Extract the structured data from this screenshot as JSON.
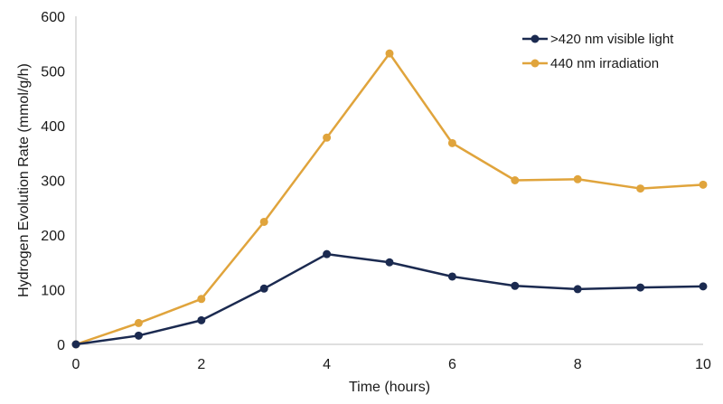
{
  "chart_data": {
    "type": "line",
    "title": "",
    "xlabel": "Time (hours)",
    "ylabel": "Hydrogen Evolution Rate (mmol/g/h)",
    "xlim": [
      0,
      10
    ],
    "ylim": [
      0,
      600
    ],
    "xticks": [
      0,
      2,
      4,
      6,
      8,
      10
    ],
    "yticks": [
      0,
      100,
      200,
      300,
      400,
      500,
      600
    ],
    "grid": false,
    "legend_position": "top-right",
    "x": [
      0,
      1,
      2,
      3,
      4,
      5,
      6,
      7,
      8,
      9,
      10
    ],
    "series": [
      {
        "name": ">420 nm visible light",
        "color": "#1b2a50",
        "values": [
          0,
          16,
          44,
          102,
          165,
          150,
          124,
          107,
          101,
          104,
          106
        ]
      },
      {
        "name": "440 nm irradiation",
        "color": "#e0a43c",
        "values": [
          0,
          39,
          83,
          224,
          378,
          532,
          368,
          300,
          302,
          285,
          292
        ]
      }
    ]
  }
}
